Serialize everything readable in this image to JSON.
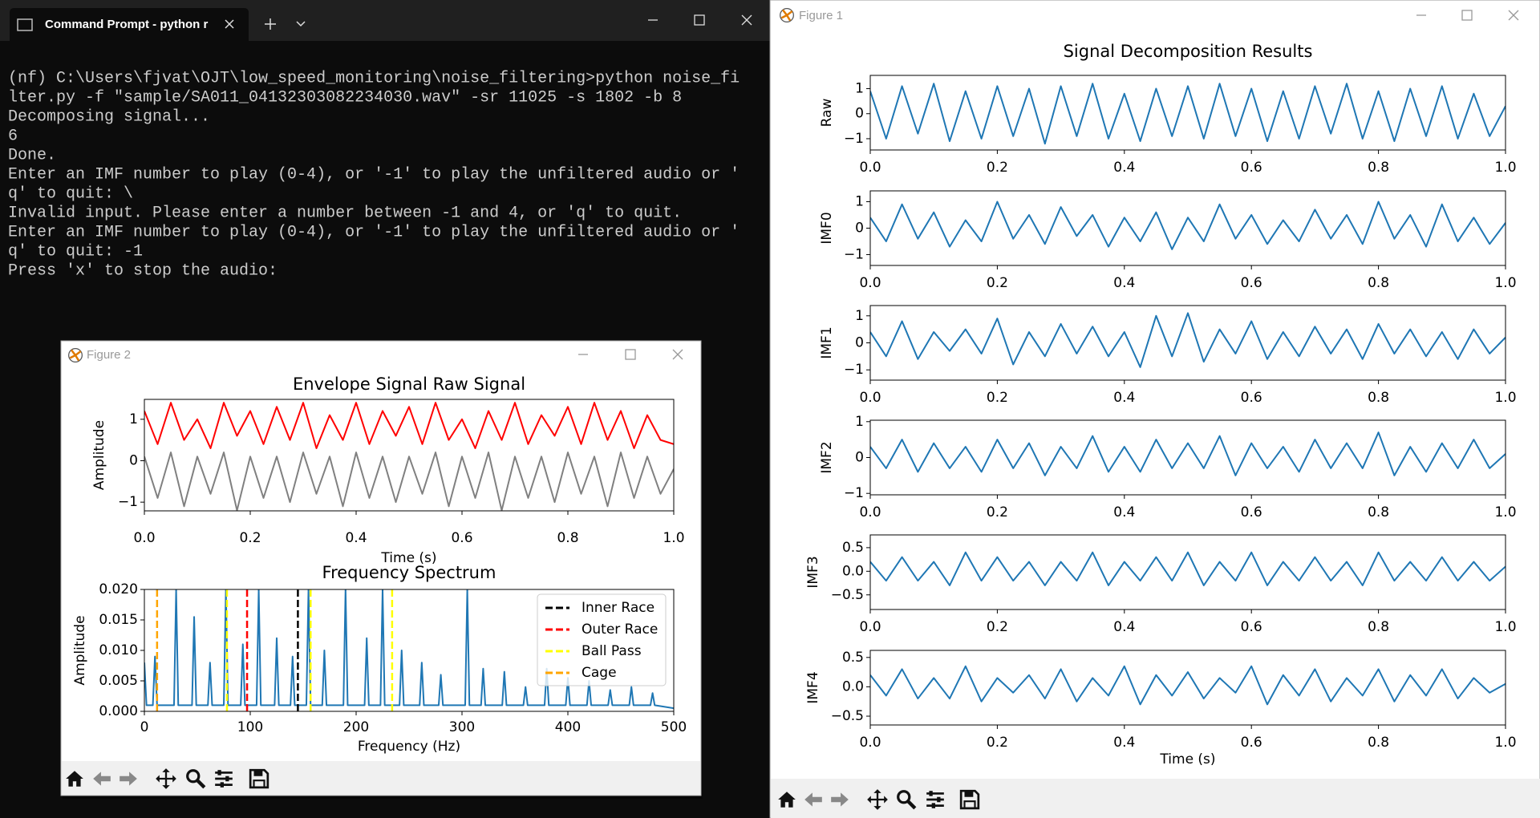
{
  "terminal": {
    "tab_title": "Command Prompt - python r",
    "lines": [
      "(nf) C:\\Users\\fjvat\\OJT\\low_speed_monitoring\\noise_filtering>python noise_fi",
      "lter.py -f \"sample/SA011_04132303082234030.wav\" -sr 11025 -s 1802 -b 8",
      "Decomposing signal...",
      "6",
      "Done.",
      "Enter an IMF number to play (0-4), or '-1' to play the unfiltered audio or '",
      "q' to quit: \\",
      "Invalid input. Please enter a number between -1 and 4, or 'q' to quit.",
      "Enter an IMF number to play (0-4), or '-1' to play the unfiltered audio or '",
      "q' to quit: -1",
      "Press 'x' to stop the audio:"
    ]
  },
  "figure1": {
    "window_title": "Figure 1"
  },
  "figure2": {
    "window_title": "Figure 2"
  },
  "chart_data": [
    {
      "type": "line",
      "title": "Signal Decomposition Results",
      "ylabel": "Raw",
      "x": [
        0,
        0.025,
        0.05,
        0.075,
        0.1,
        0.125,
        0.15,
        0.175,
        0.2,
        0.225,
        0.25,
        0.275,
        0.3,
        0.325,
        0.35,
        0.375,
        0.4,
        0.425,
        0.45,
        0.475,
        0.5,
        0.525,
        0.55,
        0.575,
        0.6,
        0.625,
        0.65,
        0.675,
        0.7,
        0.725,
        0.75,
        0.775,
        0.8,
        0.825,
        0.85,
        0.875,
        0.9,
        0.925,
        0.95,
        0.975,
        1.0
      ],
      "series": [
        {
          "color": "#1f77b4",
          "values": [
            0.9,
            -1.0,
            1.1,
            -0.8,
            1.2,
            -1.1,
            0.9,
            -1.0,
            1.1,
            -0.9,
            1.0,
            -1.2,
            1.1,
            -0.9,
            1.2,
            -1.0,
            0.8,
            -1.1,
            1.0,
            -0.9,
            1.1,
            -1.0,
            1.2,
            -0.9,
            1.0,
            -1.1,
            0.9,
            -1.0,
            1.1,
            -0.8,
            1.2,
            -1.0,
            0.9,
            -1.1,
            1.0,
            -0.9,
            1.1,
            -1.0,
            0.8,
            -0.9,
            0.3
          ]
        }
      ],
      "xlim": [
        0,
        1
      ],
      "ylim": [
        -1.45,
        1.53
      ],
      "xticks": [
        {
          "value": 0,
          "label": "0.0"
        },
        0.2,
        0.4,
        0.6,
        0.8,
        {
          "value": 1,
          "label": "1.0"
        }
      ],
      "yticks": [
        {
          "value": -1,
          "label": "−1"
        },
        0,
        1
      ]
    },
    {
      "type": "line",
      "ylabel": "IMF0",
      "x": [
        0,
        0.025,
        0.05,
        0.075,
        0.1,
        0.125,
        0.15,
        0.175,
        0.2,
        0.225,
        0.25,
        0.275,
        0.3,
        0.325,
        0.35,
        0.375,
        0.4,
        0.425,
        0.45,
        0.475,
        0.5,
        0.525,
        0.55,
        0.575,
        0.6,
        0.625,
        0.65,
        0.675,
        0.7,
        0.725,
        0.75,
        0.775,
        0.8,
        0.825,
        0.85,
        0.875,
        0.9,
        0.925,
        0.95,
        0.975,
        1.0
      ],
      "series": [
        {
          "color": "#1f77b4",
          "values": [
            0.4,
            -0.5,
            0.9,
            -0.4,
            0.6,
            -0.7,
            0.3,
            -0.5,
            1.0,
            -0.4,
            0.5,
            -0.6,
            0.8,
            -0.3,
            0.5,
            -0.7,
            0.4,
            -0.5,
            0.6,
            -0.8,
            0.4,
            -0.5,
            0.9,
            -0.4,
            0.5,
            -0.6,
            0.3,
            -0.5,
            0.7,
            -0.4,
            0.5,
            -0.6,
            1.0,
            -0.4,
            0.5,
            -0.7,
            0.9,
            -0.5,
            0.4,
            -0.6,
            0.2
          ]
        }
      ],
      "xlim": [
        0,
        1
      ],
      "ylim": [
        -1.41,
        1.41
      ],
      "xticks": [
        {
          "value": 0,
          "label": "0.0"
        },
        0.2,
        0.4,
        0.6,
        0.8,
        {
          "value": 1,
          "label": "1.0"
        }
      ],
      "yticks": [
        {
          "value": -1,
          "label": "−1"
        },
        0,
        1
      ]
    },
    {
      "type": "line",
      "ylabel": "IMF1",
      "x": [
        0,
        0.025,
        0.05,
        0.075,
        0.1,
        0.125,
        0.15,
        0.175,
        0.2,
        0.225,
        0.25,
        0.275,
        0.3,
        0.325,
        0.35,
        0.375,
        0.4,
        0.425,
        0.45,
        0.475,
        0.5,
        0.525,
        0.55,
        0.575,
        0.6,
        0.625,
        0.65,
        0.675,
        0.7,
        0.725,
        0.75,
        0.775,
        0.8,
        0.825,
        0.85,
        0.875,
        0.9,
        0.925,
        0.95,
        0.975,
        1.0
      ],
      "series": [
        {
          "color": "#1f77b4",
          "values": [
            0.4,
            -0.5,
            0.8,
            -0.6,
            0.4,
            -0.3,
            0.5,
            -0.4,
            0.9,
            -0.8,
            0.4,
            -0.5,
            0.7,
            -0.4,
            0.6,
            -0.5,
            0.4,
            -0.9,
            1.0,
            -0.5,
            1.1,
            -0.7,
            0.5,
            -0.4,
            0.8,
            -0.6,
            0.4,
            -0.5,
            0.6,
            -0.4,
            0.5,
            -0.6,
            0.7,
            -0.4,
            0.5,
            -0.5,
            0.4,
            -0.6,
            0.5,
            -0.4,
            0.2
          ]
        }
      ],
      "xlim": [
        0,
        1
      ],
      "ylim": [
        -1.38,
        1.38
      ],
      "xticks": [
        {
          "value": 0,
          "label": "0.0"
        },
        0.2,
        0.4,
        0.6,
        0.8,
        {
          "value": 1,
          "label": "1.0"
        }
      ],
      "yticks": [
        {
          "value": -1,
          "label": "−1"
        },
        0,
        1
      ]
    },
    {
      "type": "line",
      "ylabel": "IMF2",
      "x": [
        0,
        0.025,
        0.05,
        0.075,
        0.1,
        0.125,
        0.15,
        0.175,
        0.2,
        0.225,
        0.25,
        0.275,
        0.3,
        0.325,
        0.35,
        0.375,
        0.4,
        0.425,
        0.45,
        0.475,
        0.5,
        0.525,
        0.55,
        0.575,
        0.6,
        0.625,
        0.65,
        0.675,
        0.7,
        0.725,
        0.75,
        0.775,
        0.8,
        0.825,
        0.85,
        0.875,
        0.9,
        0.925,
        0.95,
        0.975,
        1.0
      ],
      "series": [
        {
          "color": "#1f77b4",
          "values": [
            0.3,
            -0.3,
            0.5,
            -0.4,
            0.4,
            -0.3,
            0.3,
            -0.4,
            0.5,
            -0.3,
            0.4,
            -0.5,
            0.3,
            -0.3,
            0.6,
            -0.4,
            0.3,
            -0.4,
            0.5,
            -0.3,
            0.4,
            -0.3,
            0.6,
            -0.5,
            0.4,
            -0.3,
            0.3,
            -0.4,
            0.5,
            -0.3,
            0.4,
            -0.3,
            0.7,
            -0.5,
            0.3,
            -0.4,
            0.4,
            -0.3,
            0.5,
            -0.3,
            0.1
          ]
        }
      ],
      "xlim": [
        0,
        1
      ],
      "ylim": [
        -1.04,
        1.04
      ],
      "xticks": [
        {
          "value": 0,
          "label": "0.0"
        },
        0.2,
        0.4,
        0.6,
        0.8,
        {
          "value": 1,
          "label": "1.0"
        }
      ],
      "yticks": [
        {
          "value": -1,
          "label": "−1"
        },
        0,
        1
      ]
    },
    {
      "type": "line",
      "ylabel": "IMF3",
      "x": [
        0,
        0.025,
        0.05,
        0.075,
        0.1,
        0.125,
        0.15,
        0.175,
        0.2,
        0.225,
        0.25,
        0.275,
        0.3,
        0.325,
        0.35,
        0.375,
        0.4,
        0.425,
        0.45,
        0.475,
        0.5,
        0.525,
        0.55,
        0.575,
        0.6,
        0.625,
        0.65,
        0.675,
        0.7,
        0.725,
        0.75,
        0.775,
        0.8,
        0.825,
        0.85,
        0.875,
        0.9,
        0.925,
        0.95,
        0.975,
        1.0
      ],
      "series": [
        {
          "color": "#1f77b4",
          "values": [
            0.2,
            -0.2,
            0.3,
            -0.2,
            0.2,
            -0.3,
            0.4,
            -0.2,
            0.3,
            -0.2,
            0.2,
            -0.3,
            0.2,
            -0.2,
            0.4,
            -0.3,
            0.2,
            -0.2,
            0.3,
            -0.2,
            0.4,
            -0.3,
            0.2,
            -0.2,
            0.4,
            -0.3,
            0.2,
            -0.2,
            0.3,
            -0.2,
            0.2,
            -0.3,
            0.4,
            -0.2,
            0.2,
            -0.2,
            0.3,
            -0.2,
            0.2,
            -0.2,
            0.1
          ]
        }
      ],
      "xlim": [
        0,
        1
      ],
      "ylim": [
        -0.81,
        0.77
      ],
      "xticks": [
        {
          "value": 0,
          "label": "0.0"
        },
        0.2,
        0.4,
        0.6,
        0.8,
        {
          "value": 1,
          "label": "1.0"
        }
      ],
      "yticks": [
        {
          "value": -0.5,
          "label": "−0.5"
        },
        {
          "value": 0,
          "label": "0.0"
        },
        0.5
      ]
    },
    {
      "type": "line",
      "ylabel": "IMF4",
      "xlabel": "Time (s)",
      "x": [
        0,
        0.025,
        0.05,
        0.075,
        0.1,
        0.125,
        0.15,
        0.175,
        0.2,
        0.225,
        0.25,
        0.275,
        0.3,
        0.325,
        0.35,
        0.375,
        0.4,
        0.425,
        0.45,
        0.475,
        0.5,
        0.525,
        0.55,
        0.575,
        0.6,
        0.625,
        0.65,
        0.675,
        0.7,
        0.725,
        0.75,
        0.775,
        0.8,
        0.825,
        0.85,
        0.875,
        0.9,
        0.925,
        0.95,
        0.975,
        1.0
      ],
      "series": [
        {
          "color": "#1f77b4",
          "values": [
            0.2,
            -0.15,
            0.3,
            -0.2,
            0.15,
            -0.2,
            0.35,
            -0.25,
            0.15,
            -0.1,
            0.2,
            -0.2,
            0.3,
            -0.25,
            0.15,
            -0.15,
            0.35,
            -0.3,
            0.2,
            -0.15,
            0.25,
            -0.2,
            0.15,
            -0.1,
            0.35,
            -0.3,
            0.2,
            -0.15,
            0.3,
            -0.25,
            0.15,
            -0.15,
            0.3,
            -0.25,
            0.2,
            -0.15,
            0.3,
            -0.2,
            0.15,
            -0.1,
            0.05
          ]
        }
      ],
      "xlim": [
        0,
        1
      ],
      "ylim": [
        -0.65,
        0.62
      ],
      "xticks": [
        {
          "value": 0,
          "label": "0.0"
        },
        0.2,
        0.4,
        0.6,
        0.8,
        {
          "value": 1,
          "label": "1.0"
        }
      ],
      "yticks": [
        {
          "value": -0.5,
          "label": "−0.5"
        },
        {
          "value": 0,
          "label": "0.0"
        },
        0.5
      ]
    },
    {
      "type": "line",
      "title": "Envelope Signal Raw Signal",
      "ylabel": "Amplitude",
      "xlabel": "Time (s)",
      "x": [
        0,
        0.025,
        0.05,
        0.075,
        0.1,
        0.125,
        0.15,
        0.175,
        0.2,
        0.225,
        0.25,
        0.275,
        0.3,
        0.325,
        0.35,
        0.375,
        0.4,
        0.425,
        0.45,
        0.475,
        0.5,
        0.525,
        0.55,
        0.575,
        0.6,
        0.625,
        0.65,
        0.675,
        0.7,
        0.725,
        0.75,
        0.775,
        0.8,
        0.825,
        0.85,
        0.875,
        0.9,
        0.925,
        0.95,
        0.975,
        1.0
      ],
      "series": [
        {
          "color": "#ff0000",
          "values": [
            1.2,
            0.4,
            1.4,
            0.5,
            1.0,
            0.3,
            1.4,
            0.6,
            1.2,
            0.4,
            1.3,
            0.5,
            1.4,
            0.3,
            1.1,
            0.5,
            1.4,
            0.4,
            1.2,
            0.6,
            1.3,
            0.4,
            1.4,
            0.5,
            1.0,
            0.3,
            1.2,
            0.5,
            1.4,
            0.4,
            1.1,
            0.6,
            1.3,
            0.4,
            1.4,
            0.5,
            1.2,
            0.3,
            1.1,
            0.5,
            0.4
          ]
        },
        {
          "color": "#808080",
          "values": [
            0.1,
            -0.9,
            0.2,
            -1.1,
            0.1,
            -0.8,
            0.2,
            -1.2,
            0.1,
            -0.9,
            0.1,
            -1.0,
            0.2,
            -0.8,
            0.1,
            -1.1,
            0.2,
            -0.9,
            0.1,
            -1.0,
            0.1,
            -0.8,
            0.2,
            -1.1,
            0.1,
            -0.9,
            0.2,
            -1.2,
            0.1,
            -0.9,
            0.1,
            -1.0,
            0.2,
            -0.8,
            0.1,
            -1.1,
            0.2,
            -0.9,
            0.1,
            -0.8,
            -0.2
          ]
        }
      ],
      "xlim": [
        0,
        1
      ],
      "ylim": [
        -1.21,
        1.48
      ],
      "xticks": [
        {
          "value": 0,
          "label": "0.0"
        },
        0.2,
        0.4,
        0.6,
        0.8,
        {
          "value": 1,
          "label": "1.0"
        }
      ],
      "yticks": [
        {
          "value": -1,
          "label": "−1"
        },
        0,
        1
      ]
    },
    {
      "type": "line",
      "title": "Frequency Spectrum",
      "ylabel": "Amplitude",
      "xlabel": "Frequency (Hz)",
      "x": [
        0,
        2,
        4,
        8,
        10,
        12,
        28,
        30,
        32,
        45,
        47,
        49,
        60,
        62,
        64,
        75,
        77,
        79,
        91,
        93,
        95,
        106,
        108,
        110,
        123,
        125,
        127,
        138,
        140,
        142,
        153,
        155,
        157,
        168,
        170,
        172,
        188,
        190,
        192,
        208,
        210,
        212,
        223,
        225,
        227,
        241,
        243,
        245,
        260,
        262,
        264,
        278,
        280,
        282,
        303,
        305,
        307,
        318,
        320,
        322,
        338,
        340,
        342,
        358,
        360,
        362,
        378,
        380,
        382,
        398,
        400,
        402,
        418,
        420,
        422,
        438,
        440,
        442,
        458,
        460,
        462,
        478,
        480,
        482,
        500
      ],
      "series": [
        {
          "color": "#1f77b4",
          "values": [
            0.008,
            0.001,
            0.001,
            0.001,
            0.009,
            0.001,
            0.001,
            0.02,
            0.001,
            0.001,
            0.0155,
            0.001,
            0.001,
            0.008,
            0.001,
            0.001,
            0.02,
            0.001,
            0.001,
            0.011,
            0.001,
            0.001,
            0.02,
            0.001,
            0.001,
            0.012,
            0.001,
            0.001,
            0.009,
            0.001,
            0.001,
            0.02,
            0.001,
            0.001,
            0.01,
            0.001,
            0.001,
            0.02,
            0.001,
            0.001,
            0.012,
            0.001,
            0.001,
            0.02,
            0.001,
            0.001,
            0.01,
            0.001,
            0.001,
            0.008,
            0.001,
            0.001,
            0.006,
            0.001,
            0.001,
            0.02,
            0.001,
            0.001,
            0.007,
            0.001,
            0.001,
            0.0065,
            0.001,
            0.001,
            0.004,
            0.001,
            0.001,
            0.007,
            0.001,
            0.001,
            0.0055,
            0.001,
            0.001,
            0.005,
            0.001,
            0.001,
            0.0035,
            0.001,
            0.001,
            0.004,
            0.001,
            0.001,
            0.003,
            0.001,
            0.0005
          ]
        }
      ],
      "vlines": [
        {
          "name": "Inner Race",
          "color": "#000000",
          "x": [
            145
          ]
        },
        {
          "name": "Outer Race",
          "color": "#ff0000",
          "x": [
            97
          ]
        },
        {
          "name": "Ball Pass",
          "color": "#ffff00",
          "x": [
            78,
            157,
            234
          ]
        },
        {
          "name": "Cage",
          "color": "#ffa500",
          "x": [
            12
          ]
        }
      ],
      "legend": "upper right",
      "xlim": [
        0,
        500
      ],
      "ylim": [
        0,
        0.02
      ],
      "xticks": [
        0,
        100,
        200,
        300,
        400,
        500
      ],
      "yticks": [
        {
          "value": 0,
          "label": "0.000"
        },
        {
          "value": 0.005,
          "label": "0.005"
        },
        {
          "value": 0.01,
          "label": "0.010"
        },
        {
          "value": 0.015,
          "label": "0.015"
        },
        {
          "value": 0.02,
          "label": "0.020"
        }
      ]
    }
  ]
}
